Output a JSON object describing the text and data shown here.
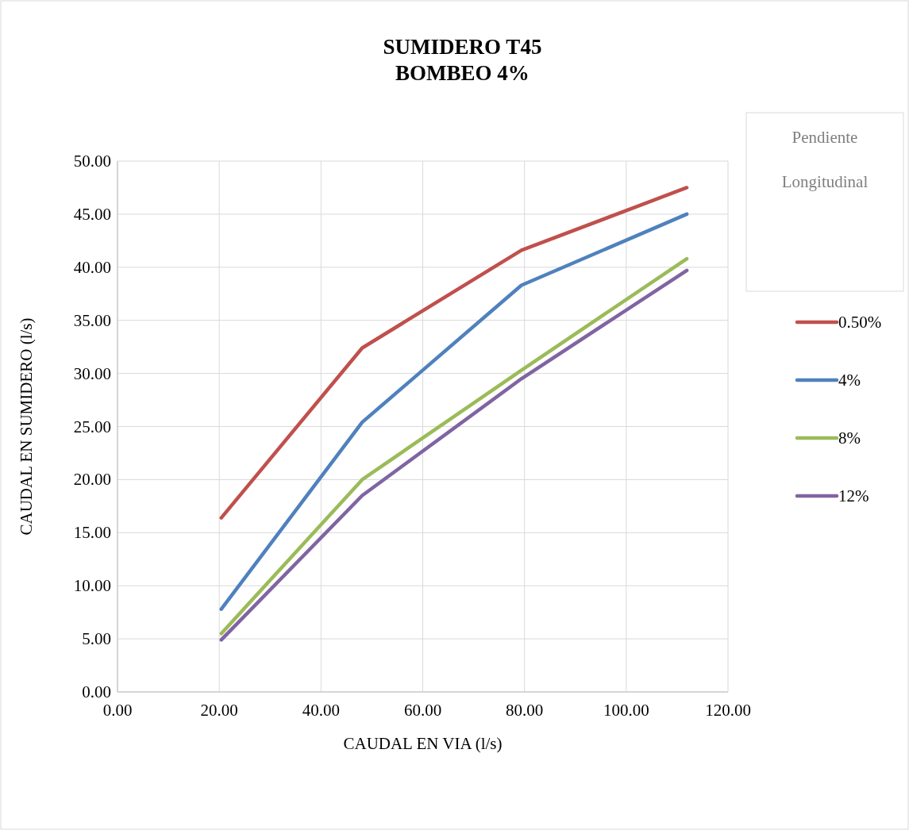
{
  "chart_data": {
    "type": "line",
    "title": "SUMIDERO T45\nBOMBEO 4%",
    "xlabel": "CAUDAL EN VIA (l/s)",
    "ylabel": "CAUDAL  EN SUMIDERO (l/s)",
    "legend_title": "Pendiente Longitudinal",
    "legend": "right",
    "grid": true,
    "marker": "none",
    "line_style": "solid",
    "x": [
      20.4,
      48.1,
      79.4,
      111.9
    ],
    "series": [
      {
        "name": "0.50%",
        "color": "#c0504d",
        "values": [
          16.4,
          32.4,
          41.6,
          47.5
        ]
      },
      {
        "name": "4%",
        "color": "#4f81bd",
        "values": [
          7.8,
          25.4,
          38.3,
          45.0
        ]
      },
      {
        "name": "8%",
        "color": "#9bbb59",
        "values": [
          5.5,
          20.0,
          30.3,
          40.8
        ]
      },
      {
        "name": "12%",
        "color": "#8064a2",
        "values": [
          4.9,
          18.5,
          29.5,
          39.7
        ]
      }
    ],
    "xlim": [
      0,
      120
    ],
    "xticks": [
      {
        "value": 0,
        "label": "0.00"
      },
      {
        "value": 20,
        "label": "20.00"
      },
      {
        "value": 40,
        "label": "40.00"
      },
      {
        "value": 60,
        "label": "60.00"
      },
      {
        "value": 80,
        "label": "80.00"
      },
      {
        "value": 100,
        "label": "100.00"
      },
      {
        "value": 120,
        "label": "120.00"
      }
    ],
    "ylim": [
      0,
      50
    ],
    "yticks": [
      {
        "value": 0,
        "label": "0.00"
      },
      {
        "value": 5,
        "label": "5.00"
      },
      {
        "value": 10,
        "label": "10.00"
      },
      {
        "value": 15,
        "label": "15.00"
      },
      {
        "value": 20,
        "label": "20.00"
      },
      {
        "value": 25,
        "label": "25.00"
      },
      {
        "value": 30,
        "label": "30.00"
      },
      {
        "value": 35,
        "label": "35.00"
      },
      {
        "value": 40,
        "label": "40.00"
      },
      {
        "value": 45,
        "label": "45.00"
      },
      {
        "value": 50,
        "label": "50.00"
      }
    ]
  }
}
